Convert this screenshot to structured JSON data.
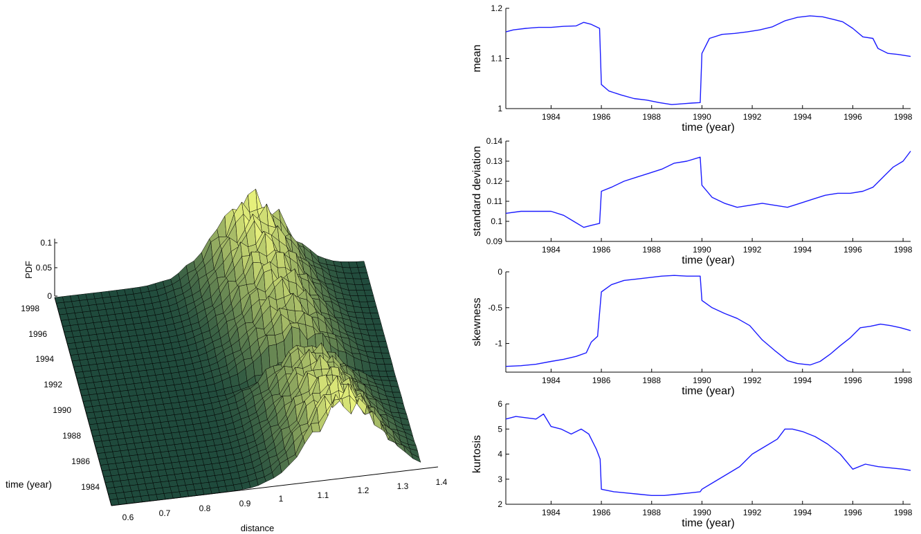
{
  "figure": {
    "surface3d": {
      "xlabel": "distance",
      "ylabel": "time (year)",
      "zlabel": "PDF",
      "xticks": [
        "0.6",
        "0.7",
        "0.8",
        "0.9",
        "1",
        "1.1",
        "1.2",
        "1.3",
        "1.4"
      ],
      "yticks": [
        "1984",
        "1986",
        "1988",
        "1990",
        "1992",
        "1994",
        "1996",
        "1998"
      ],
      "zticks": [
        "0",
        "0.05",
        "0.1"
      ],
      "colors": {
        "low": "#1f4a3c",
        "high": "#e8f27c",
        "edge": "#000000"
      }
    }
  },
  "chart_data": [
    {
      "type": "line",
      "ylabel": "mean",
      "xlabel": "time (year)",
      "xlim": [
        1982.2,
        1998.3
      ],
      "ylim": [
        1.0,
        1.2
      ],
      "xticks": [
        "1984",
        "1986",
        "1988",
        "1990",
        "1992",
        "1994",
        "1996",
        "1998"
      ],
      "yticks": [
        "1",
        "1.1",
        "1.2"
      ],
      "color": "#1a1aff",
      "x": [
        1982.2,
        1982.5,
        1983.0,
        1983.5,
        1984.0,
        1984.5,
        1985.0,
        1985.3,
        1985.6,
        1985.93,
        1986.0,
        1986.3,
        1986.8,
        1987.3,
        1987.8,
        1988.3,
        1988.8,
        1989.3,
        1989.6,
        1989.93,
        1990.0,
        1990.3,
        1990.8,
        1991.3,
        1991.8,
        1992.3,
        1992.8,
        1993.3,
        1993.8,
        1994.3,
        1994.8,
        1995.3,
        1995.6,
        1996.0,
        1996.4,
        1996.8,
        1997.0,
        1997.4,
        1997.8,
        1998.3
      ],
      "y": [
        1.153,
        1.157,
        1.16,
        1.162,
        1.162,
        1.164,
        1.165,
        1.172,
        1.168,
        1.16,
        1.048,
        1.035,
        1.027,
        1.02,
        1.017,
        1.012,
        1.008,
        1.01,
        1.011,
        1.012,
        1.11,
        1.14,
        1.148,
        1.15,
        1.153,
        1.157,
        1.163,
        1.175,
        1.182,
        1.185,
        1.183,
        1.177,
        1.173,
        1.16,
        1.143,
        1.14,
        1.12,
        1.11,
        1.108,
        1.104
      ]
    },
    {
      "type": "line",
      "ylabel": "standard deviation",
      "xlabel": "time (year)",
      "xlim": [
        1982.2,
        1998.3
      ],
      "ylim": [
        0.09,
        0.14
      ],
      "xticks": [
        "1984",
        "1986",
        "1988",
        "1990",
        "1992",
        "1994",
        "1996",
        "1998"
      ],
      "yticks": [
        "0.09",
        "0.1",
        "0.11",
        "0.12",
        "0.13",
        "0.14"
      ],
      "color": "#1a1aff",
      "x": [
        1982.2,
        1982.8,
        1983.4,
        1984.0,
        1984.5,
        1984.9,
        1985.3,
        1985.6,
        1985.93,
        1986.0,
        1986.4,
        1986.9,
        1987.4,
        1987.9,
        1988.4,
        1988.9,
        1989.4,
        1989.93,
        1990.0,
        1990.4,
        1990.9,
        1991.4,
        1991.9,
        1992.4,
        1992.9,
        1993.4,
        1993.9,
        1994.4,
        1994.9,
        1995.4,
        1995.9,
        1996.4,
        1996.8,
        1997.2,
        1997.6,
        1998.0,
        1998.3
      ],
      "y": [
        0.104,
        0.105,
        0.105,
        0.105,
        0.103,
        0.1,
        0.097,
        0.098,
        0.099,
        0.115,
        0.117,
        0.12,
        0.122,
        0.124,
        0.126,
        0.129,
        0.13,
        0.132,
        0.118,
        0.112,
        0.109,
        0.107,
        0.108,
        0.109,
        0.108,
        0.107,
        0.109,
        0.111,
        0.113,
        0.114,
        0.114,
        0.115,
        0.117,
        0.122,
        0.127,
        0.13,
        0.135
      ]
    },
    {
      "type": "line",
      "ylabel": "skewness",
      "xlabel": "time (year)",
      "xlim": [
        1982.2,
        1998.3
      ],
      "ylim": [
        -1.4,
        0.0
      ],
      "xticks": [
        "1984",
        "1986",
        "1988",
        "1990",
        "1992",
        "1994",
        "1996",
        "1998"
      ],
      "yticks": [
        "-1",
        "-0.5",
        "0"
      ],
      "color": "#1a1aff",
      "x": [
        1982.2,
        1982.8,
        1983.4,
        1984.0,
        1984.5,
        1985.0,
        1985.4,
        1985.6,
        1985.85,
        1986.0,
        1986.4,
        1986.9,
        1987.4,
        1987.9,
        1988.4,
        1988.9,
        1989.4,
        1989.93,
        1990.0,
        1990.4,
        1990.9,
        1991.4,
        1991.9,
        1992.4,
        1992.9,
        1993.4,
        1993.8,
        1994.3,
        1994.7,
        1995.1,
        1995.5,
        1995.9,
        1996.3,
        1996.7,
        1997.1,
        1997.5,
        1997.9,
        1998.3
      ],
      "y": [
        -1.32,
        -1.31,
        -1.29,
        -1.25,
        -1.22,
        -1.18,
        -1.13,
        -0.98,
        -0.9,
        -0.28,
        -0.18,
        -0.12,
        -0.1,
        -0.08,
        -0.06,
        -0.05,
        -0.06,
        -0.06,
        -0.4,
        -0.5,
        -0.58,
        -0.65,
        -0.75,
        -0.95,
        -1.1,
        -1.24,
        -1.28,
        -1.3,
        -1.25,
        -1.15,
        -1.03,
        -0.92,
        -0.78,
        -0.76,
        -0.73,
        -0.75,
        -0.78,
        -0.82
      ]
    },
    {
      "type": "line",
      "ylabel": "kurtosis",
      "xlabel": "time (year)",
      "xlim": [
        1982.2,
        1998.3
      ],
      "ylim": [
        2,
        6
      ],
      "xticks": [
        "1984",
        "1986",
        "1988",
        "1990",
        "1992",
        "1994",
        "1996",
        "1998"
      ],
      "yticks": [
        "2",
        "3",
        "4",
        "5",
        "6"
      ],
      "color": "#1a1aff",
      "x": [
        1982.2,
        1982.6,
        1983.0,
        1983.4,
        1983.7,
        1984.0,
        1984.4,
        1984.8,
        1985.2,
        1985.5,
        1985.8,
        1985.95,
        1986.0,
        1986.5,
        1987.0,
        1987.5,
        1988.0,
        1988.5,
        1989.0,
        1989.5,
        1989.93,
        1990.0,
        1990.5,
        1991.0,
        1991.5,
        1992.0,
        1992.5,
        1993.0,
        1993.3,
        1993.6,
        1994.0,
        1994.5,
        1995.0,
        1995.5,
        1996.0,
        1996.5,
        1997.0,
        1997.5,
        1998.0,
        1998.3
      ],
      "y": [
        5.4,
        5.5,
        5.45,
        5.4,
        5.6,
        5.1,
        5.0,
        4.8,
        5.0,
        4.8,
        4.2,
        3.8,
        2.6,
        2.5,
        2.45,
        2.4,
        2.35,
        2.35,
        2.4,
        2.45,
        2.5,
        2.6,
        2.9,
        3.2,
        3.5,
        4.0,
        4.3,
        4.6,
        5.0,
        5.0,
        4.9,
        4.7,
        4.4,
        4.0,
        3.4,
        3.6,
        3.5,
        3.45,
        3.4,
        3.35
      ]
    }
  ]
}
